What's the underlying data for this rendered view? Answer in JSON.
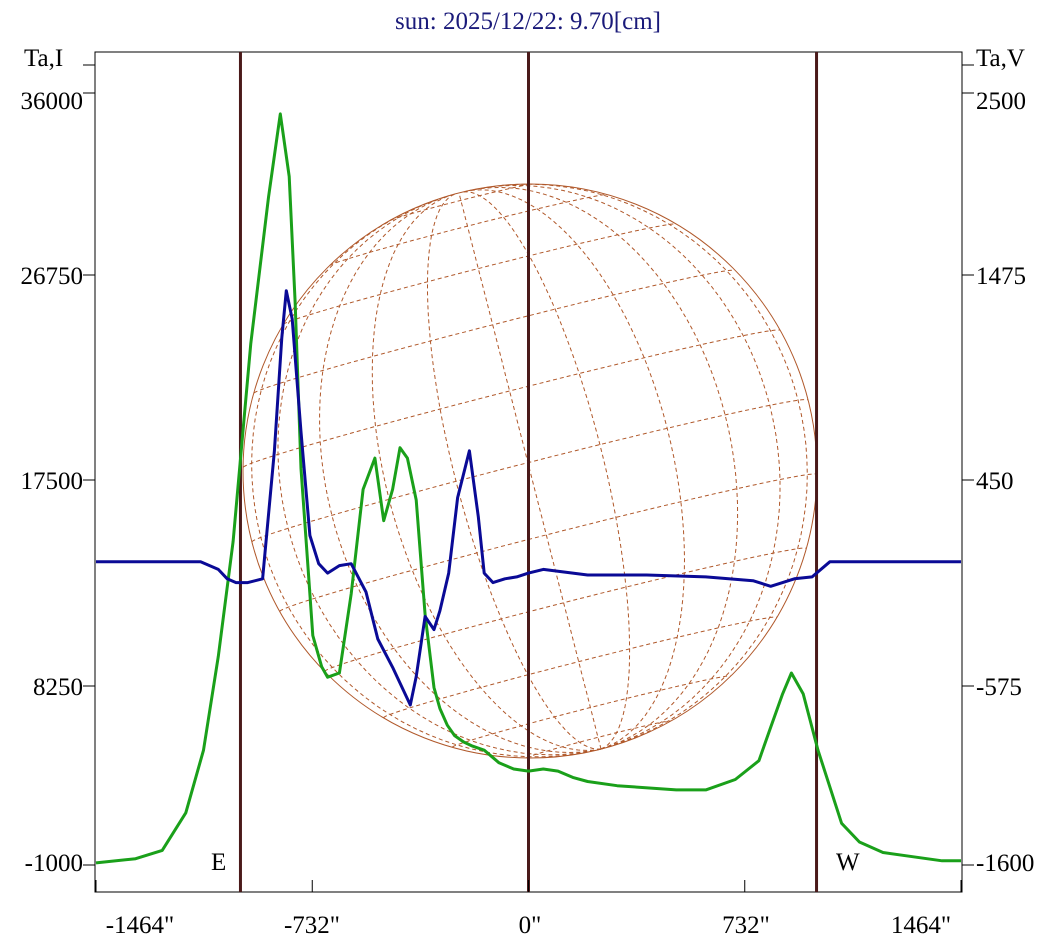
{
  "title": "sun: 2025/12/22: 9.70[cm]",
  "left_axis": {
    "label": "Ta,I",
    "ticks": [
      "36000",
      "26750",
      "17500",
      "8250",
      "-1000"
    ],
    "range": [
      -1000,
      36000
    ]
  },
  "right_axis": {
    "label": "Ta,V",
    "ticks": [
      "2500",
      "1475",
      "450",
      "-575",
      "-1600"
    ],
    "range": [
      -1600,
      2500
    ]
  },
  "x_axis": {
    "ticks": [
      "-1464\"",
      "-732\"",
      "0\"",
      "732\"",
      "1464\""
    ],
    "range": [
      -1464,
      1464
    ]
  },
  "markers": {
    "east": "E",
    "west": "W"
  },
  "colors": {
    "intensity": "#1aa01a",
    "polarization": "#0a0a96",
    "disk": "#b0582a",
    "limb_lines": "#4a1a1a",
    "title": "#1a1a7a"
  },
  "chart_data": {
    "type": "line",
    "title": "sun: 2025/12/22: 9.70[cm]",
    "xlim": [
      -1464,
      1464
    ],
    "vertical_lines_x": [
      -975,
      0,
      975
    ],
    "series": [
      {
        "axis": "left",
        "ylim": [
          -1000,
          36000
        ],
        "x": [
          -1464,
          -1330,
          -1240,
          -1160,
          -1100,
          -1050,
          -1000,
          -940,
          -880,
          -840,
          -810,
          -790,
          -770,
          -745,
          -730,
          -700,
          -680,
          -640,
          -600,
          -560,
          -520,
          -490,
          -460,
          -435,
          -410,
          -380,
          -350,
          -320,
          -300,
          -275,
          -250,
          -220,
          -190,
          -150,
          -100,
          -50,
          0,
          50,
          100,
          150,
          200,
          300,
          500,
          600,
          700,
          780,
          820,
          860,
          890,
          930,
          980,
          1060,
          1120,
          1200,
          1300,
          1400,
          1464
        ],
        "values": [
          -900,
          -700,
          -300,
          1500,
          4500,
          9000,
          14500,
          24000,
          31000,
          35000,
          32000,
          26000,
          18000,
          13000,
          10000,
          8500,
          8000,
          8200,
          12000,
          17000,
          18500,
          15500,
          17000,
          19000,
          18500,
          16500,
          11000,
          7500,
          6500,
          5700,
          5200,
          4900,
          4700,
          4500,
          3900,
          3600,
          3500,
          3600,
          3500,
          3200,
          3000,
          2800,
          2600,
          2600,
          3100,
          4000,
          5600,
          7200,
          8200,
          7200,
          4500,
          1000,
          100,
          -400,
          -600,
          -800,
          -800
        ]
      },
      {
        "axis": "right",
        "ylim": [
          -1600,
          2500
        ],
        "x": [
          -1464,
          -1110,
          -1050,
          -1020,
          -990,
          -950,
          -900,
          -860,
          -835,
          -820,
          -800,
          -770,
          -740,
          -710,
          -680,
          -640,
          -600,
          -550,
          -510,
          -460,
          -400,
          -380,
          -350,
          -320,
          -300,
          -270,
          -240,
          -200,
          -170,
          -150,
          -120,
          -80,
          -40,
          0,
          50,
          100,
          200,
          400,
          600,
          760,
          820,
          860,
          900,
          960,
          1020,
          1464
        ],
        "values": [
          10,
          10,
          -30,
          -80,
          -100,
          -100,
          -80,
          600,
          1200,
          1450,
          1300,
          700,
          150,
          0,
          -50,
          -10,
          0,
          -150,
          -400,
          -550,
          -750,
          -600,
          -280,
          -350,
          -250,
          -50,
          350,
          600,
          250,
          -50,
          -100,
          -80,
          -70,
          -50,
          -30,
          -40,
          -60,
          -60,
          -70,
          -90,
          -120,
          -100,
          -80,
          -70,
          10,
          10
        ]
      }
    ]
  }
}
